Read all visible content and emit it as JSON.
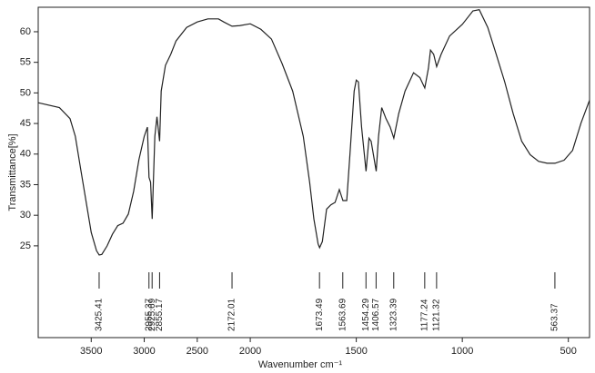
{
  "chart_data": {
    "type": "line",
    "x_label": "Wavenumber cm⁻¹",
    "y_label": "Transmittance[%]",
    "x": [
      4000,
      3800,
      3700,
      3650,
      3600,
      3550,
      3500,
      3450,
      3425,
      3400,
      3350,
      3300,
      3250,
      3200,
      3150,
      3100,
      3050,
      3000,
      2970,
      2955,
      2940,
      2925,
      2900,
      2880,
      2855,
      2840,
      2800,
      2750,
      2700,
      2600,
      2500,
      2400,
      2300,
      2250,
      2172,
      2100,
      2000,
      1950,
      1900,
      1850,
      1800,
      1750,
      1720,
      1700,
      1680,
      1673,
      1660,
      1640,
      1620,
      1600,
      1580,
      1563,
      1545,
      1530,
      1510,
      1500,
      1490,
      1475,
      1454,
      1440,
      1430,
      1406,
      1395,
      1380,
      1360,
      1340,
      1323,
      1300,
      1270,
      1230,
      1200,
      1177,
      1160,
      1150,
      1135,
      1121,
      1100,
      1060,
      1000,
      950,
      920,
      880,
      840,
      800,
      760,
      720,
      680,
      640,
      600,
      563,
      520,
      480,
      440,
      400
    ],
    "values": [
      48.4,
      47.6,
      45.8,
      42.9,
      37.6,
      32.4,
      27.2,
      24.2,
      23.5,
      23.6,
      25,
      26.9,
      28.3,
      28.7,
      30.2,
      33.9,
      39.1,
      42.9,
      44.4,
      36.2,
      35.4,
      29.4,
      42.9,
      46.1,
      42.1,
      50.3,
      54.5,
      56.3,
      58.5,
      60.7,
      61.6,
      62.1,
      62.1,
      61.6,
      60.9,
      61,
      61.3,
      60.4,
      58.8,
      54.8,
      50.3,
      42.9,
      35.4,
      29.4,
      25.3,
      24.7,
      25.7,
      31,
      31.7,
      32.1,
      34.2,
      32.4,
      32.4,
      39.9,
      50.3,
      52.1,
      51.8,
      44.4,
      37.2,
      42.6,
      42.1,
      37.2,
      42.9,
      47.6,
      45.8,
      44.4,
      42.6,
      46.6,
      50.3,
      53.3,
      52.5,
      50.8,
      54,
      57,
      56.3,
      54.3,
      56.3,
      59.3,
      61.2,
      63.4,
      63.6,
      60.7,
      56.3,
      51.8,
      46.6,
      42.1,
      39.9,
      38.8,
      38.5,
      38.5,
      39,
      40.6,
      45.1,
      48.8
    ],
    "color": "#222222",
    "xlim": [
      4000,
      400
    ],
    "x_break": 2000,
    "xticks": [
      3500,
      3000,
      2500,
      2000,
      1500,
      1000,
      500
    ],
    "ylim": [
      10,
      64
    ],
    "yticks": [
      25,
      30,
      35,
      40,
      45,
      50,
      55,
      60
    ],
    "peak_wavenumbers": [
      3425.41,
      2955.37,
      2925.69,
      2855.17,
      2172.01,
      1673.49,
      1563.69,
      1454.29,
      1406.57,
      1323.39,
      1177.24,
      1121.32,
      563.37
    ],
    "grid": false
  }
}
